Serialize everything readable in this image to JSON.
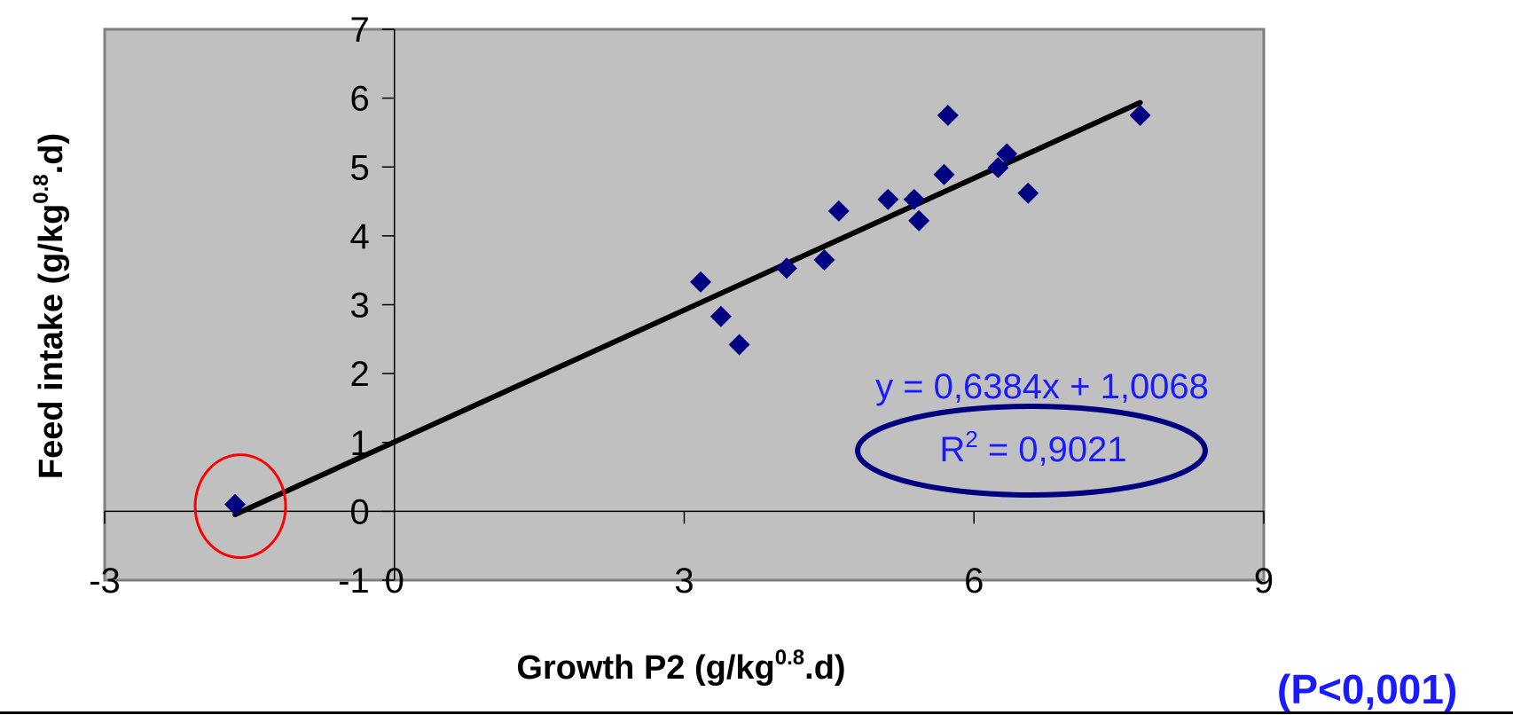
{
  "chart_data": {
    "type": "scatter",
    "title": "",
    "xlabel": "Growth P2 (g/kg",
    "xlabel_sup": "0.8",
    "xlabel_tail": ".d)",
    "ylabel": "Feed intake (g/kg",
    "ylabel_sup": "0.8",
    "ylabel_tail": ".d)",
    "xlim": [
      -3,
      9
    ],
    "ylim": [
      -1,
      7
    ],
    "x_ticks": [
      -3,
      0,
      3,
      6,
      9
    ],
    "x_tick_labels": [
      "-3",
      "0",
      "3",
      "6",
      "9"
    ],
    "y_ticks": [
      -1,
      0,
      1,
      2,
      3,
      4,
      5,
      6,
      7
    ],
    "y_tick_labels": [
      "-1",
      "0",
      "1",
      "2",
      "3",
      "4",
      "5",
      "6",
      "7"
    ],
    "grid": false,
    "series": [
      {
        "points": [
          {
            "x": -1.65,
            "y": 0.1
          },
          {
            "x": 3.17,
            "y": 3.33
          },
          {
            "x": 3.38,
            "y": 2.83
          },
          {
            "x": 3.57,
            "y": 2.42
          },
          {
            "x": 4.06,
            "y": 3.53
          },
          {
            "x": 4.45,
            "y": 3.65
          },
          {
            "x": 4.6,
            "y": 4.36
          },
          {
            "x": 5.11,
            "y": 4.53
          },
          {
            "x": 5.38,
            "y": 4.53
          },
          {
            "x": 5.43,
            "y": 4.22
          },
          {
            "x": 5.69,
            "y": 4.89
          },
          {
            "x": 5.73,
            "y": 5.75
          },
          {
            "x": 6.25,
            "y": 4.99
          },
          {
            "x": 6.34,
            "y": 5.19
          },
          {
            "x": 6.56,
            "y": 4.62
          },
          {
            "x": 7.72,
            "y": 5.75
          }
        ]
      }
    ],
    "trendline": {
      "x_start": -1.65,
      "x_end": 7.72,
      "slope": 0.6384,
      "intercept": 1.0068
    },
    "equation": "y = 0,6384x + 1,0068",
    "r2_label": "R",
    "r2_sup": "2",
    "r2_value": " = 0,9021",
    "highlighted_point": {
      "x": -1.65,
      "y": 0.1
    },
    "annotation": "(P<0,001)",
    "colors": {
      "plot_bg": "#c0c0c0",
      "marker": "#000080",
      "trendline": "#000000",
      "highlight_circle": "#ff0000",
      "r2_ellipse": "#000080",
      "annotation_text": "#1a1aff"
    }
  }
}
